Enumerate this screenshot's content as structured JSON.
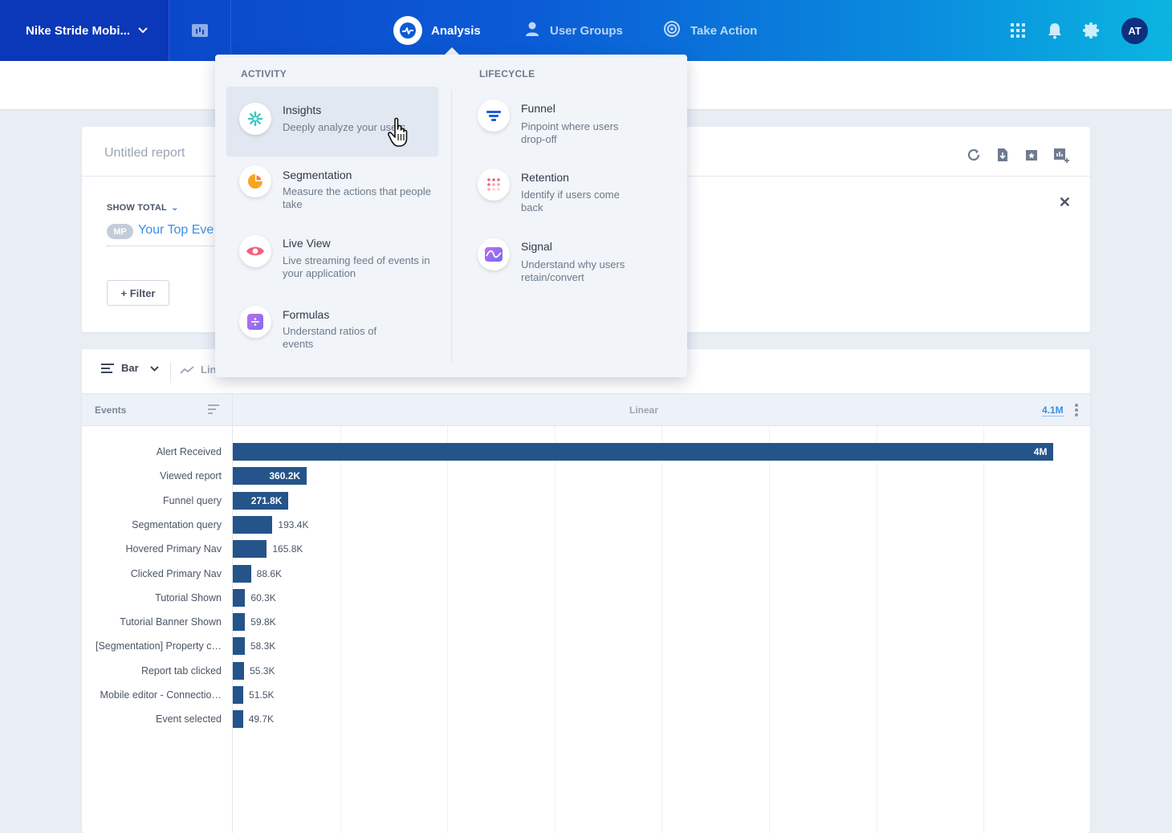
{
  "topnav": {
    "project": "Nike Stride Mobi...",
    "nav": [
      {
        "label": "Analysis"
      },
      {
        "label": "User Groups"
      },
      {
        "label": "Take Action"
      }
    ],
    "avatar": "AT",
    "icons": [
      "bar-chart-icon",
      "apps-grid-icon",
      "bell-icon",
      "gear-icon"
    ]
  },
  "report": {
    "title": "Untitled report",
    "show_total": "SHOW TOTAL",
    "badge": "MP",
    "event_selector": "Your Top Eve",
    "filter_label": "+ Filter",
    "tools": [
      "refresh-icon",
      "download-icon",
      "bookmark-icon",
      "add-to-board-icon"
    ]
  },
  "chart": {
    "chart_type_label": "Bar",
    "line_label": "Lin",
    "col_events": "Events",
    "col_scale": "Linear",
    "max_label": "4.1M"
  },
  "chart_data": {
    "type": "bar",
    "orientation": "horizontal",
    "xlim": [
      0,
      4100000
    ],
    "categories": [
      "Alert Received",
      "Viewed report",
      "Funnel query",
      "Segmentation query",
      "Hovered Primary Nav",
      "Clicked Primary Nav",
      "Tutorial Shown",
      "Tutorial Banner Shown",
      "[Segmentation] Property c…",
      "Report tab clicked",
      "Mobile editor - Connectio…",
      "Event selected"
    ],
    "values": [
      4000000,
      360200,
      271800,
      193400,
      165800,
      88600,
      60300,
      59800,
      58300,
      55300,
      51500,
      49700
    ],
    "value_labels": [
      "4M",
      "360.2K",
      "271.8K",
      "193.4K",
      "165.8K",
      "88.6K",
      "60.3K",
      "59.8K",
      "58.3K",
      "55.3K",
      "51.5K",
      "49.7K"
    ],
    "bar_color": "#24548a"
  },
  "menu": {
    "activity_head": "ACTIVITY",
    "lifecycle_head": "LIFECYCLE",
    "activity": [
      {
        "title": "Insights",
        "desc": "Deeply analyze your users"
      },
      {
        "title": "Segmentation",
        "desc": "Measure the actions that people take"
      },
      {
        "title": "Live View",
        "desc": "Live streaming feed of events in your application"
      },
      {
        "title": "Formulas",
        "desc": "Understand ratios of events"
      }
    ],
    "lifecycle": [
      {
        "title": "Funnel",
        "desc": "Pinpoint where users drop-off"
      },
      {
        "title": "Retention",
        "desc": "Identify if users come back"
      },
      {
        "title": "Signal",
        "desc": "Understand why users retain/convert"
      }
    ]
  },
  "colors": {
    "nav_start": "#0a3fc4",
    "nav_end": "#0bb5e0",
    "accent": "#3b8ee8",
    "bar": "#24548a"
  }
}
